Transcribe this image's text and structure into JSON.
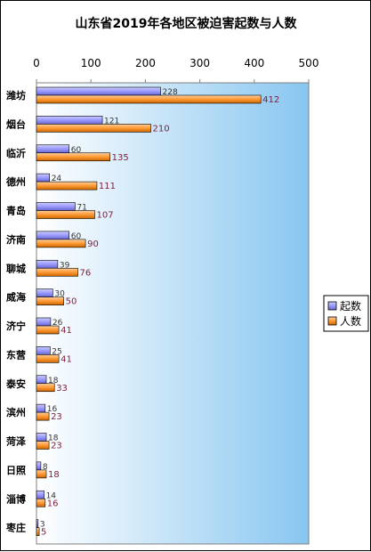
{
  "chart_data": {
    "type": "bar",
    "orientation": "horizontal",
    "title": "山东省2019年各地区被迫害起数与人数",
    "categories": [
      "潍坊",
      "烟台",
      "临沂",
      "德州",
      "青岛",
      "济南",
      "聊城",
      "威海",
      "济宁",
      "东营",
      "泰安",
      "滨州",
      "菏泽",
      "日照",
      "淄博",
      "枣庄"
    ],
    "series": [
      {
        "name": "起数",
        "color": "#9999ff",
        "values": [
          228,
          121,
          60,
          24,
          71,
          60,
          39,
          30,
          26,
          25,
          18,
          16,
          18,
          8,
          14,
          3
        ]
      },
      {
        "name": "人数",
        "color": "#ff9933",
        "values": [
          412,
          210,
          135,
          111,
          107,
          90,
          76,
          50,
          41,
          41,
          33,
          23,
          23,
          18,
          16,
          5
        ]
      }
    ],
    "xlim": [
      0,
      500
    ],
    "x_ticks": [
      "0",
      "100",
      "200",
      "300",
      "400",
      "500"
    ],
    "x_axis_position": "top",
    "legend_position": "right",
    "grid": false,
    "plot_background": "gradient-white-to-blue"
  }
}
